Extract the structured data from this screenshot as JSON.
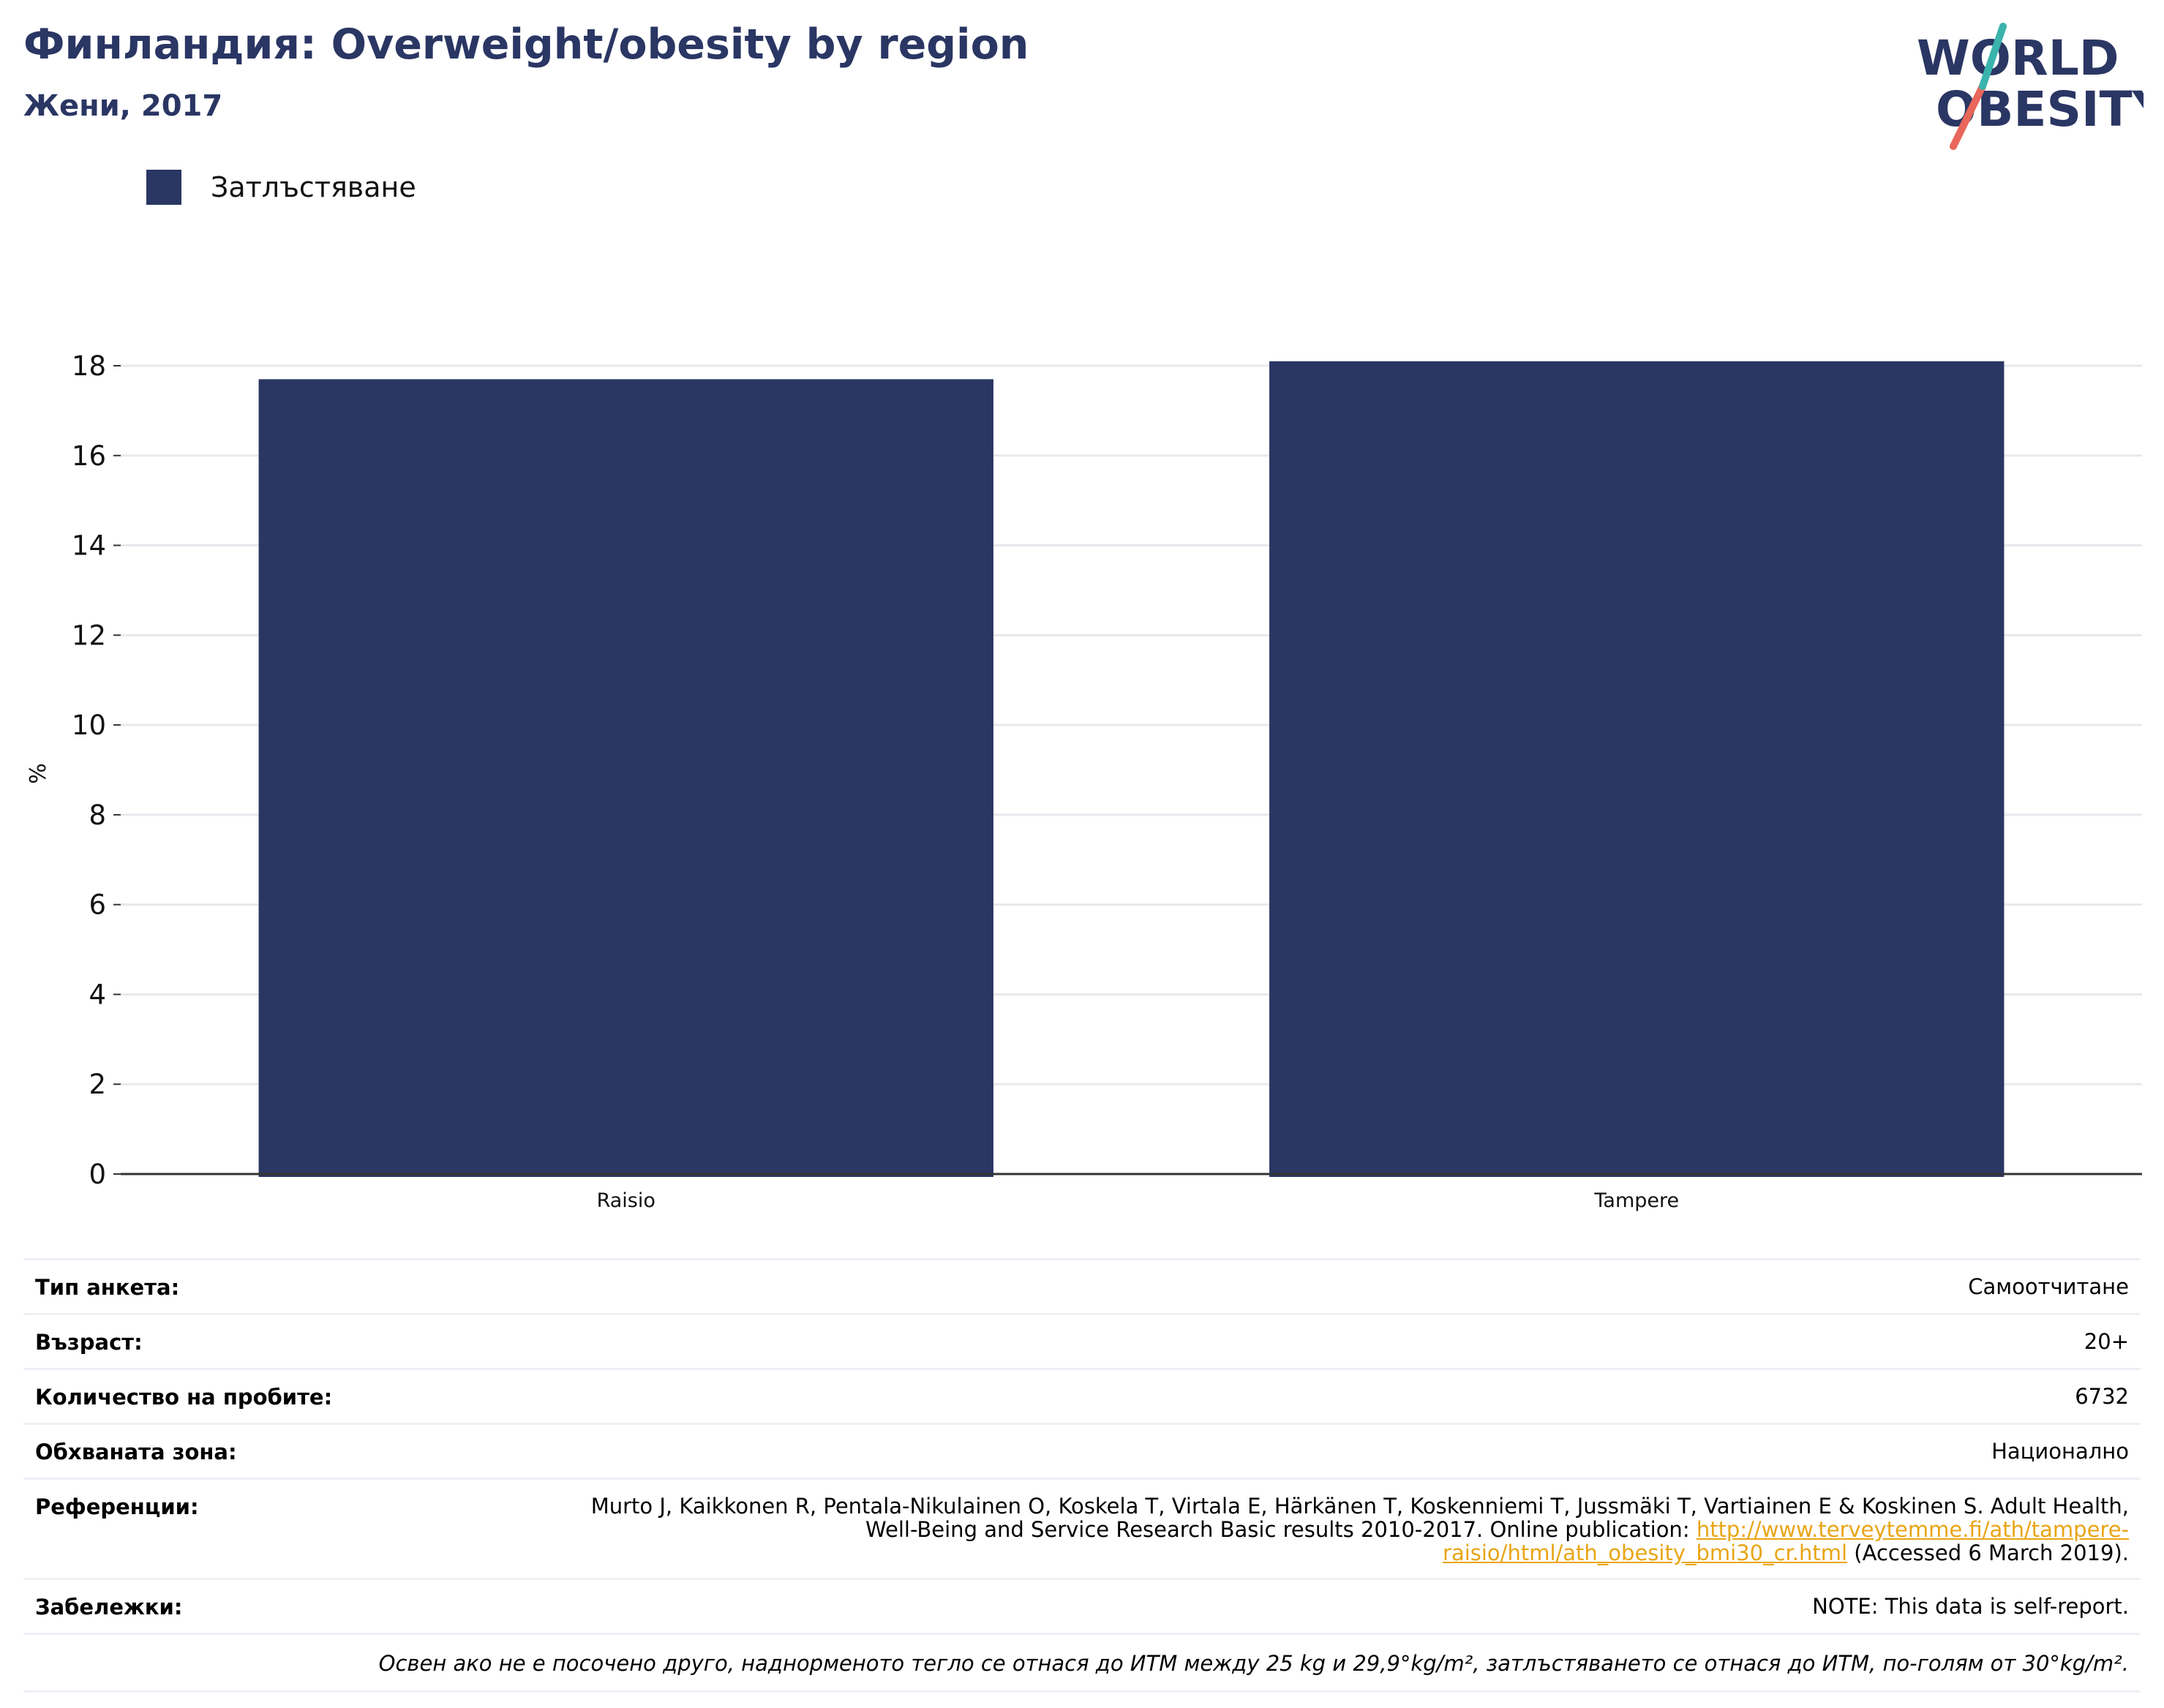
{
  "header": {
    "title": "Финландия: Overweight/obesity by region",
    "subtitle": "Жени, 2017"
  },
  "logo": {
    "line1": "WORLD",
    "line2": "OBESITY"
  },
  "colors": {
    "bar": "#2a3663",
    "grid": "#e8e9ee",
    "axis": "#333333",
    "link": "#e8a515"
  },
  "chart_data": {
    "type": "bar",
    "categories": [
      "Raisio",
      "Tampere"
    ],
    "series": [
      {
        "name": "Затлъстяване",
        "values": [
          17.7,
          18.1
        ]
      }
    ],
    "ylabel": "%",
    "ylim": [
      0,
      18
    ],
    "yticks": [
      0,
      2,
      4,
      6,
      8,
      10,
      12,
      14,
      16,
      18
    ],
    "grid": true,
    "legend": "top-left"
  },
  "meta": {
    "survey_type": {
      "label": "Тип анкета:",
      "value": "Самоотчитане"
    },
    "age": {
      "label": "Възраст:",
      "value": "20+"
    },
    "sample_size": {
      "label": "Количество на пробите:",
      "value": "6732"
    },
    "coverage": {
      "label": "Обхваната зона:",
      "value": "Национално"
    },
    "references": {
      "label": "Референции:",
      "text": "Murto J, Kaikkonen R, Pentala-Nikulainen O, Koskela T, Virtala E, Härkänen T, Koskenniemi T, Jussmäki T, Vartiainen E & Koskinen S. Adult Health, Well-Being and Service Research Basic results 2010-2017. Online publication: ",
      "link": "http://www.terveytemme.fi/ath/tampere-raisio/html/ath_obesity_bmi30_cr.html",
      "suffix": " (Accessed 6 March 2019)."
    },
    "notes": {
      "label": "Забележки:",
      "value": "NOTE: This data is self-report."
    },
    "footnote": "Освен ако не е посочено друго, наднорменото тегло се отнася до ИТМ между 25 kg и 29,9°kg/m², затлъстяването се отнася до ИТМ, по-голям от 30°kg/m²."
  }
}
